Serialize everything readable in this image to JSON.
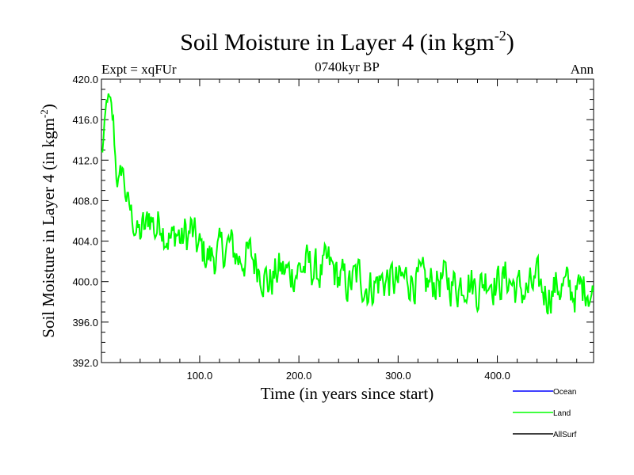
{
  "chart_data": {
    "type": "line",
    "title": "Soil Moisture in Layer 4 (in kgm",
    "title_sup": "-2",
    "title_end": ")",
    "subtitle_left": "Expt = xqFUr",
    "subtitle_center": "0740kyr BP",
    "subtitle_right": "Ann",
    "xlabel": "Time (in years since start)",
    "ylabel": "Soil Moisture in Layer 4 (in kgm",
    "ylabel_sup": "-2",
    "ylabel_end": ")",
    "xlim": [
      1,
      497
    ],
    "ylim": [
      392.0,
      420.0
    ],
    "x_ticks": [
      100,
      200,
      300,
      400
    ],
    "x_tick_labels": [
      "100.0",
      "200.0",
      "300.0",
      "400.0"
    ],
    "y_ticks": [
      392,
      396,
      400,
      404,
      408,
      412,
      416,
      420
    ],
    "y_tick_labels": [
      "392.0",
      "396.0",
      "400.0",
      "404.0",
      "408.0",
      "412.0",
      "416.0",
      "420.0"
    ],
    "legend": [
      {
        "name": "Ocean",
        "color": "#0000ff"
      },
      {
        "name": "Land",
        "color": "#00ff00"
      },
      {
        "name": "AllSurf",
        "color": "#000000"
      }
    ],
    "legend_position": "bottom-right",
    "series": [
      {
        "name": "Land",
        "color": "#00ff00",
        "anchors_x": [
          1,
          4,
          7,
          10,
          13,
          16,
          19,
          22,
          25,
          28,
          31,
          34,
          37,
          40,
          43,
          46,
          49,
          52,
          55,
          58,
          61,
          64,
          67,
          70,
          73,
          76,
          79,
          82,
          85,
          88,
          91,
          94,
          97,
          100,
          110,
          120,
          130,
          140,
          150,
          160,
          170,
          180,
          190,
          200,
          210,
          220,
          230,
          240,
          250,
          260,
          270,
          280,
          290,
          300,
          310,
          320,
          330,
          340,
          350,
          360,
          370,
          380,
          390,
          400,
          410,
          420,
          430,
          440,
          450,
          460,
          470,
          480,
          490,
          497
        ],
        "anchors_y": [
          412.5,
          414.5,
          418.2,
          417.0,
          415.5,
          410.8,
          409.5,
          411.5,
          409.0,
          407.5,
          406.8,
          405.5,
          405.0,
          404.8,
          405.2,
          405.0,
          406.8,
          406.2,
          405.0,
          405.6,
          406.4,
          405.2,
          404.8,
          404.2,
          404.0,
          405.0,
          404.6,
          403.8,
          404.8,
          404.2,
          405.2,
          404.4,
          403.6,
          403.2,
          402.4,
          402.8,
          403.6,
          402.2,
          402.6,
          401.6,
          399.8,
          401.2,
          400.8,
          401.2,
          401.6,
          400.8,
          401.6,
          400.4,
          399.6,
          400.6,
          399.4,
          400.0,
          400.2,
          399.8,
          400.4,
          400.0,
          399.6,
          400.2,
          400.0,
          399.6,
          400.4,
          399.2,
          400.6,
          399.8,
          400.4,
          399.2,
          399.0,
          399.8,
          398.8,
          399.6,
          399.4,
          398.8,
          399.8,
          398.4
        ],
        "noise_amplitude_kgm2": 1.8,
        "n_points": 497
      }
    ]
  }
}
